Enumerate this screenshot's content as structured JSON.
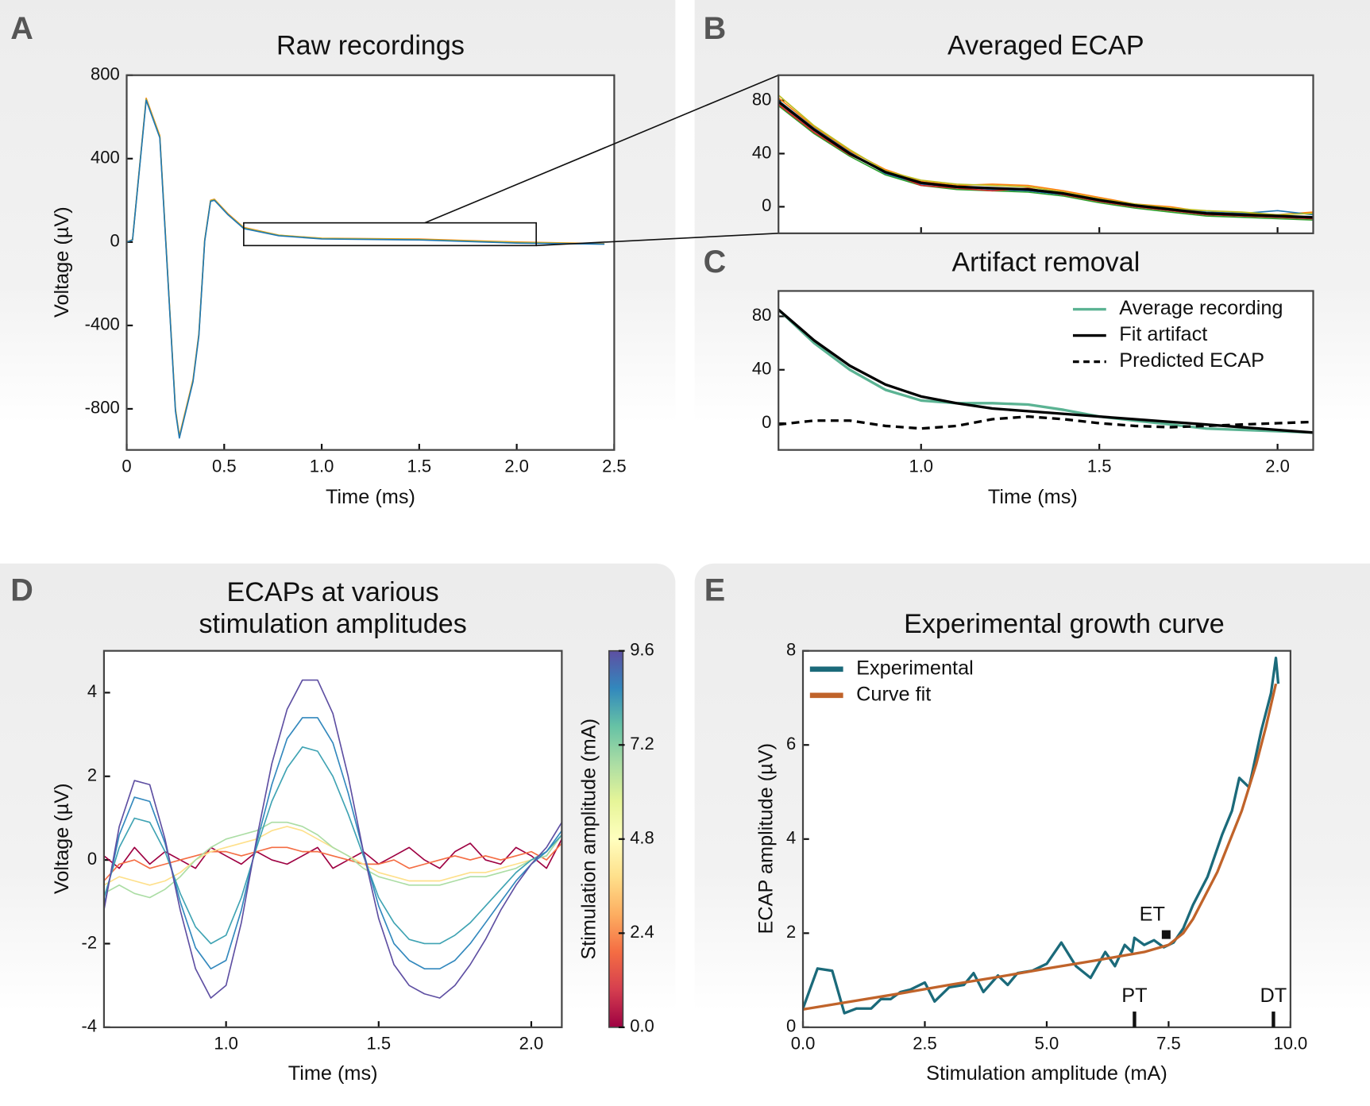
{
  "chart_data": [
    {
      "type": "line",
      "panel": "A",
      "title": "Raw recordings",
      "xlabel": "Time (ms)",
      "ylabel": "Voltage (µV)",
      "x": [
        0,
        0.03,
        0.1,
        0.17,
        0.25,
        0.27,
        0.34,
        0.37,
        0.4,
        0.43,
        0.45,
        0.52,
        0.6,
        0.78,
        1.0,
        1.5,
        2.0,
        2.45
      ],
      "series": [
        {
          "color": "#ff7f0e",
          "values": [
            0,
            12,
            690,
            510,
            -800,
            -930,
            -660,
            -440,
            10,
            200,
            205,
            135,
            70,
            33,
            18,
            14,
            0,
            -8
          ]
        },
        {
          "color": "#bcbd22",
          "values": [
            0,
            11,
            685,
            505,
            -805,
            -935,
            -665,
            -445,
            8,
            198,
            203,
            132,
            68,
            32,
            17,
            12,
            -2,
            -9
          ]
        },
        {
          "color": "#1f77b4",
          "values": [
            0,
            10,
            680,
            500,
            -810,
            -940,
            -670,
            -450,
            5,
            195,
            200,
            130,
            65,
            30,
            15,
            10,
            -5,
            -10
          ]
        }
      ],
      "zoom_box": {
        "x": [
          0.6,
          2.1
        ],
        "y": [
          -17,
          92
        ]
      },
      "xlim": [
        0,
        2.5
      ],
      "xticks": [
        0,
        0.5,
        {
          "value": 1,
          "label": "1.0"
        },
        1.5,
        {
          "value": 2,
          "label": "2.0"
        },
        2.5
      ],
      "ylim": [
        -997,
        800
      ],
      "yticks": [
        800,
        400,
        0,
        -400,
        -800
      ]
    },
    {
      "type": "line",
      "panel": "B",
      "title": "Averaged ECAP",
      "x": [
        0.6,
        0.7,
        0.8,
        0.9,
        1.0,
        1.1,
        1.2,
        1.3,
        1.4,
        1.5,
        1.6,
        1.7,
        1.8,
        1.9,
        2.0,
        2.1
      ],
      "series": [
        {
          "color": "#ff7f0e",
          "values": [
            82,
            60,
            42,
            28,
            19,
            16,
            17,
            16,
            12,
            7,
            2,
            0,
            -4,
            -5,
            -6,
            -4
          ]
        },
        {
          "color": "#2ca02c",
          "values": [
            76,
            55,
            38,
            24,
            16,
            13,
            12,
            11,
            8,
            3,
            -1,
            -4,
            -7,
            -8,
            -9,
            -10
          ]
        },
        {
          "color": "#1f77b4",
          "values": [
            80,
            59,
            41,
            25,
            17,
            15,
            13,
            12,
            9,
            6,
            1,
            -2,
            -4,
            -5,
            -3,
            -6
          ]
        },
        {
          "color": "#d62728",
          "values": [
            77,
            56,
            39,
            27,
            16,
            14,
            12,
            14,
            9,
            4,
            0,
            -3,
            -6,
            -7,
            -8,
            -9
          ]
        },
        {
          "color": "#bcbd22",
          "values": [
            84,
            61,
            43,
            27,
            20,
            17,
            16,
            15,
            11,
            6,
            2,
            -1,
            -3,
            -4,
            -6,
            -5
          ]
        },
        {
          "color": "#000000",
          "width": 3,
          "values": [
            79,
            58,
            40,
            26,
            18,
            15,
            14,
            13,
            10,
            5,
            1,
            -2,
            -5,
            -6,
            -7,
            -8
          ]
        }
      ],
      "xlim": [
        0.6,
        2.1
      ],
      "xticks": [
        1,
        1.5,
        2
      ],
      "xtick_labels": false,
      "ylim": [
        -20,
        99
      ],
      "yticks": [
        80,
        40,
        0
      ]
    },
    {
      "type": "line",
      "panel": "C",
      "title": "Artifact removal",
      "xlabel": "Time (ms)",
      "x": [
        0.6,
        0.7,
        0.8,
        0.9,
        1.0,
        1.1,
        1.2,
        1.3,
        1.4,
        1.5,
        1.6,
        1.7,
        1.8,
        1.9,
        2.0,
        2.1
      ],
      "series": [
        {
          "name": "Average recording",
          "color": "#5bb393",
          "width": 3,
          "values": [
            85,
            60,
            40,
            25,
            17,
            15,
            15,
            14,
            10,
            5,
            2,
            -1,
            -4,
            -5,
            -6,
            -7
          ]
        },
        {
          "name": "Fit artifact",
          "color": "#000000",
          "width": 3,
          "values": [
            85,
            62,
            43,
            29,
            20,
            15,
            11,
            9,
            7,
            5,
            3,
            1,
            -1,
            -3,
            -5,
            -7
          ]
        },
        {
          "name": "Predicted ECAP",
          "color": "#000000",
          "width": 3,
          "dash": true,
          "values": [
            -1,
            2,
            2,
            -2,
            -4,
            -2,
            3,
            5,
            3,
            0,
            -2,
            -3,
            -2,
            -1,
            0,
            1
          ]
        }
      ],
      "legend": "upper right",
      "xlim": [
        0.6,
        2.1
      ],
      "xticks": [
        {
          "value": 1,
          "label": "1.0"
        },
        1.5,
        {
          "value": 2,
          "label": "2.0"
        }
      ],
      "ylim": [
        -20,
        99
      ],
      "yticks": [
        80,
        40,
        0
      ]
    },
    {
      "type": "line",
      "panel": "D",
      "title": [
        "ECAPs at various",
        "stimulation amplitudes"
      ],
      "xlabel": "Time (ms)",
      "ylabel": "Voltage (µV)",
      "x": [
        0.6,
        0.65,
        0.7,
        0.75,
        0.8,
        0.85,
        0.9,
        0.95,
        1.0,
        1.05,
        1.1,
        1.15,
        1.2,
        1.25,
        1.3,
        1.35,
        1.4,
        1.45,
        1.5,
        1.55,
        1.6,
        1.65,
        1.7,
        1.75,
        1.8,
        1.85,
        1.9,
        1.95,
        2.0,
        2.05,
        2.1
      ],
      "series": [
        {
          "color": "#9e0142",
          "values": [
            0.1,
            -0.2,
            0.3,
            -0.1,
            0.2,
            0,
            -0.2,
            0.3,
            0.1,
            -0.1,
            0.2,
            0,
            -0.1,
            0.1,
            0.3,
            -0.2,
            0,
            0.2,
            -0.1,
            0.1,
            0.3,
            0,
            -0.2,
            0.2,
            0.4,
            0,
            -0.1,
            0.3,
            0.1,
            -0.2,
            0.5
          ]
        },
        {
          "color": "#f46d43",
          "values": [
            -0.5,
            -0.1,
            0,
            -0.2,
            -0.1,
            0,
            0.1,
            0.2,
            0.2,
            0.1,
            0.2,
            0.3,
            0.3,
            0.2,
            0.2,
            0.1,
            0,
            -0.1,
            -0.1,
            0,
            -0.2,
            -0.1,
            0,
            0.1,
            0,
            0.1,
            0,
            0.1,
            0.2,
            0,
            0.4
          ]
        },
        {
          "color": "#fee08b",
          "values": [
            -0.6,
            -0.4,
            -0.5,
            -0.6,
            -0.5,
            -0.3,
            0,
            0.2,
            0.3,
            0.4,
            0.5,
            0.7,
            0.8,
            0.7,
            0.5,
            0.3,
            0.1,
            -0.1,
            -0.3,
            -0.4,
            -0.5,
            -0.5,
            -0.5,
            -0.4,
            -0.3,
            -0.3,
            -0.2,
            -0.1,
            0,
            0.1,
            0.6
          ]
        },
        {
          "color": "#abdda4",
          "values": [
            -0.8,
            -0.6,
            -0.8,
            -0.9,
            -0.7,
            -0.4,
            0,
            0.3,
            0.5,
            0.6,
            0.7,
            0.9,
            0.9,
            0.8,
            0.6,
            0.3,
            0.1,
            -0.2,
            -0.4,
            -0.5,
            -0.6,
            -0.6,
            -0.6,
            -0.5,
            -0.4,
            -0.4,
            -0.3,
            -0.2,
            0,
            0.1,
            0.6
          ]
        },
        {
          "color": "#3fa3b3",
          "values": [
            -0.9,
            0.3,
            1.0,
            0.9,
            0.2,
            -0.8,
            -1.6,
            -2.0,
            -1.8,
            -0.9,
            0.3,
            1.4,
            2.2,
            2.7,
            2.6,
            2.0,
            1.1,
            0.1,
            -0.9,
            -1.5,
            -1.9,
            -2.0,
            -2.0,
            -1.8,
            -1.5,
            -1.1,
            -0.7,
            -0.3,
            0,
            0.2,
            0.6
          ]
        },
        {
          "color": "#3288bd",
          "values": [
            -1.1,
            0.6,
            1.5,
            1.4,
            0.4,
            -1.0,
            -2.1,
            -2.6,
            -2.4,
            -1.2,
            0.4,
            1.8,
            2.9,
            3.4,
            3.4,
            2.8,
            1.6,
            0.2,
            -1.1,
            -2.0,
            -2.4,
            -2.6,
            -2.6,
            -2.4,
            -2.0,
            -1.5,
            -1.0,
            -0.5,
            -0.1,
            0.2,
            0.7
          ]
        },
        {
          "color": "#5e4fa2",
          "values": [
            -1.2,
            0.8,
            1.9,
            1.8,
            0.5,
            -1.2,
            -2.6,
            -3.3,
            -3.0,
            -1.5,
            0.5,
            2.3,
            3.6,
            4.3,
            4.3,
            3.5,
            2.0,
            0.2,
            -1.4,
            -2.5,
            -3.0,
            -3.2,
            -3.3,
            -3.0,
            -2.5,
            -1.9,
            -1.2,
            -0.6,
            -0.1,
            0.3,
            0.9
          ]
        }
      ],
      "xlim": [
        0.6,
        2.1
      ],
      "xticks": [
        {
          "value": 1,
          "label": "1.0"
        },
        1.5,
        {
          "value": 2,
          "label": "2.0"
        }
      ],
      "ylim": [
        -4,
        5
      ],
      "yticks": [
        -4,
        -2,
        0,
        2,
        4
      ],
      "colorbar": {
        "label": "Stimulation amplitude (mA)",
        "ylim": [
          0,
          9.6
        ],
        "yticks": [
          {
            "value": 0,
            "label": "0.0"
          },
          2.4,
          4.8,
          7.2,
          9.6
        ],
        "colors": [
          "#9e0142",
          "#d53e4f",
          "#f46d43",
          "#fdae61",
          "#fee08b",
          "#ffffbf",
          "#e6f598",
          "#abdda4",
          "#66c2a5",
          "#3288bd",
          "#5e4fa2"
        ]
      }
    },
    {
      "type": "line",
      "panel": "E",
      "title": "Experimental growth curve",
      "xlabel": "Stimulation amplitude (mA)",
      "ylabel": "ECAP amplitude (µV)",
      "series": [
        {
          "name": "Experimental",
          "color": "#1b6a7a",
          "width": 3,
          "x": [
            0,
            0.3,
            0.6,
            0.85,
            1.1,
            1.4,
            1.6,
            1.8,
            2.0,
            2.2,
            2.5,
            2.7,
            3.0,
            3.3,
            3.5,
            3.7,
            4.0,
            4.2,
            4.4,
            4.7,
            5.0,
            5.3,
            5.6,
            5.9,
            6.2,
            6.4,
            6.6,
            6.75,
            6.8,
            7.0,
            7.2,
            7.4,
            7.6,
            7.8,
            8.0,
            8.3,
            8.6,
            8.8,
            8.95,
            9.15,
            9.4,
            9.6,
            9.7,
            9.75
          ],
          "values": [
            0.4,
            1.25,
            1.2,
            0.3,
            0.4,
            0.4,
            0.6,
            0.6,
            0.75,
            0.8,
            0.95,
            0.55,
            0.85,
            0.9,
            1.15,
            0.75,
            1.1,
            0.9,
            1.15,
            1.2,
            1.35,
            1.8,
            1.3,
            1.05,
            1.6,
            1.3,
            1.75,
            1.6,
            1.9,
            1.75,
            1.85,
            1.7,
            1.8,
            2.1,
            2.6,
            3.2,
            4.1,
            4.6,
            5.3,
            5.1,
            6.3,
            7.1,
            7.85,
            7.3
          ]
        },
        {
          "name": "Curve fit",
          "color": "#c0632a",
          "width": 3,
          "x": [
            0,
            1,
            2,
            3,
            4,
            5,
            6,
            7,
            7.5,
            7.8,
            8,
            8.5,
            9,
            9.3,
            9.5,
            9.7
          ],
          "values": [
            0.38,
            0.55,
            0.72,
            0.9,
            1.07,
            1.25,
            1.42,
            1.6,
            1.75,
            2.0,
            2.3,
            3.3,
            4.6,
            5.6,
            6.4,
            7.3
          ]
        }
      ],
      "legend": "upper left",
      "annotations": [
        {
          "text": "ET",
          "x": 7.45,
          "y": 1.97
        },
        {
          "text": "PT",
          "x": 6.8
        },
        {
          "text": "DT",
          "x": 9.65
        }
      ],
      "xlim": [
        0,
        10
      ],
      "xticks": [
        {
          "value": 0,
          "label": "0.0"
        },
        2.5,
        {
          "value": 5,
          "label": "5.0"
        },
        7.5,
        {
          "value": 10,
          "label": "10.0"
        }
      ],
      "ylim": [
        0,
        8
      ],
      "yticks": [
        0,
        2,
        4,
        6,
        8
      ]
    }
  ]
}
